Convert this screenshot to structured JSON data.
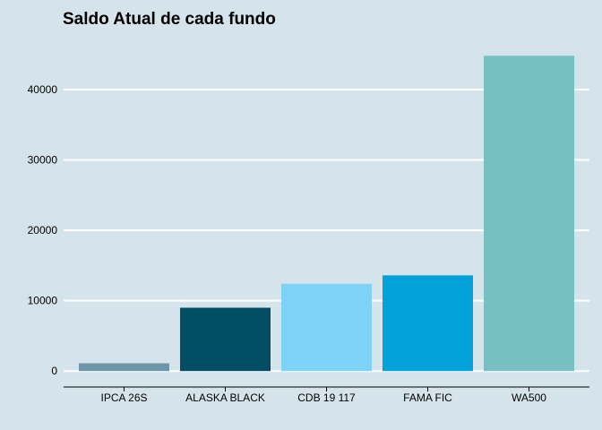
{
  "chart_data": {
    "type": "bar",
    "title": "Saldo Atual de cada fundo",
    "xlabel": "",
    "ylabel": "",
    "categories": [
      "IPCA 26S",
      "ALASKA BLACK",
      "CDB 19 117",
      "FAMA FIC",
      "WA500"
    ],
    "values": [
      1100,
      9000,
      12400,
      13600,
      44800
    ],
    "bar_colors": [
      "#6a97a9",
      "#014d64",
      "#7dd3f7",
      "#01a1da",
      "#76c0c2"
    ],
    "ylim": [
      -1500,
      47000
    ],
    "yticks": [
      0,
      10000,
      20000,
      30000,
      40000
    ],
    "ytick_labels": [
      "0",
      "10000",
      "20000",
      "30000",
      "40000"
    ],
    "grid": "horizontal",
    "legend": "none"
  },
  "colors": {
    "background": "#d5e4eb",
    "gridline": "#ffffff",
    "axis": "#000000"
  }
}
